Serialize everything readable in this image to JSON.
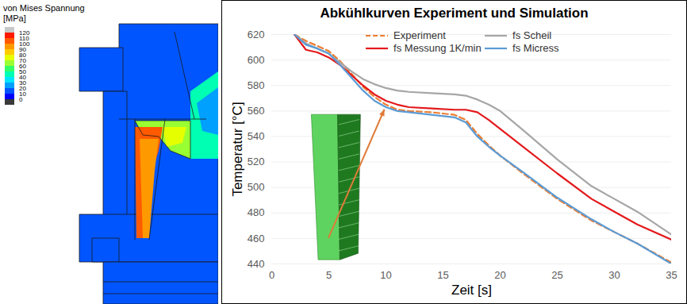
{
  "chart_data": [
    {
      "type": "contour",
      "title": "von Mises Spannung",
      "subtitle": "[MPa]",
      "colorbar_ticks": [
        120,
        110,
        100,
        90,
        80,
        70,
        60,
        50,
        40,
        30,
        20,
        10,
        0
      ],
      "colorbar_colors": [
        "#c8c8c8",
        "#ff1a00",
        "#ff5a00",
        "#ff9900",
        "#ffcc00",
        "#e6ff00",
        "#99ff33",
        "#33ff66",
        "#00ffb3",
        "#00e6ff",
        "#00a0ff",
        "#0055ff",
        "#0000ff",
        "#3a3a3a"
      ]
    },
    {
      "type": "line",
      "title": "Abkühlkurven Experiment und Simulation",
      "x_label": "Zeit [s]",
      "y_label": "Temperatur [°C]",
      "x": [
        2,
        3,
        4,
        5,
        6,
        7,
        8,
        9,
        10,
        11,
        12,
        14,
        16,
        17,
        18,
        19,
        20,
        22,
        25,
        28,
        30,
        32,
        35
      ],
      "series": [
        {
          "name": "Experiment",
          "color": "#ed7d31",
          "line_style": "dashed",
          "values": [
            620,
            615,
            611,
            607,
            599,
            589,
            579,
            571,
            565,
            561,
            560,
            559,
            557,
            553,
            542,
            533,
            525,
            511,
            491,
            474,
            465,
            456,
            441
          ]
        },
        {
          "name": "fs Scheil",
          "color": "#a6a6a6",
          "line_style": "solid",
          "values": [
            620,
            613,
            609,
            605,
            598,
            591,
            585,
            581,
            578,
            576,
            575,
            574,
            573,
            572,
            569,
            565,
            560,
            545,
            522,
            501,
            491,
            481,
            463
          ]
        },
        {
          "name": "fs Messung 1K/min",
          "color": "#e3191c",
          "line_style": "solid",
          "values": [
            620,
            608,
            606,
            602,
            596,
            588,
            580,
            573,
            568,
            565,
            563,
            562,
            561,
            561,
            559,
            553,
            546,
            532,
            511,
            491,
            481,
            471,
            459
          ]
        },
        {
          "name": "fs Micress",
          "color": "#5b9bd5",
          "line_style": "solid",
          "values": [
            620,
            612,
            609,
            605,
            596,
            586,
            576,
            568,
            563,
            560,
            559,
            557,
            555,
            551,
            540,
            532,
            525,
            512,
            492,
            475,
            465,
            456,
            440
          ]
        }
      ],
      "xlim": [
        0,
        35
      ],
      "xticks": [
        0,
        5,
        10,
        15,
        20,
        25,
        30,
        35
      ],
      "ylim": [
        440,
        620
      ],
      "yticks": [
        440,
        460,
        480,
        500,
        520,
        540,
        560,
        580,
        600,
        620
      ],
      "grid": true,
      "legend": "top"
    }
  ]
}
